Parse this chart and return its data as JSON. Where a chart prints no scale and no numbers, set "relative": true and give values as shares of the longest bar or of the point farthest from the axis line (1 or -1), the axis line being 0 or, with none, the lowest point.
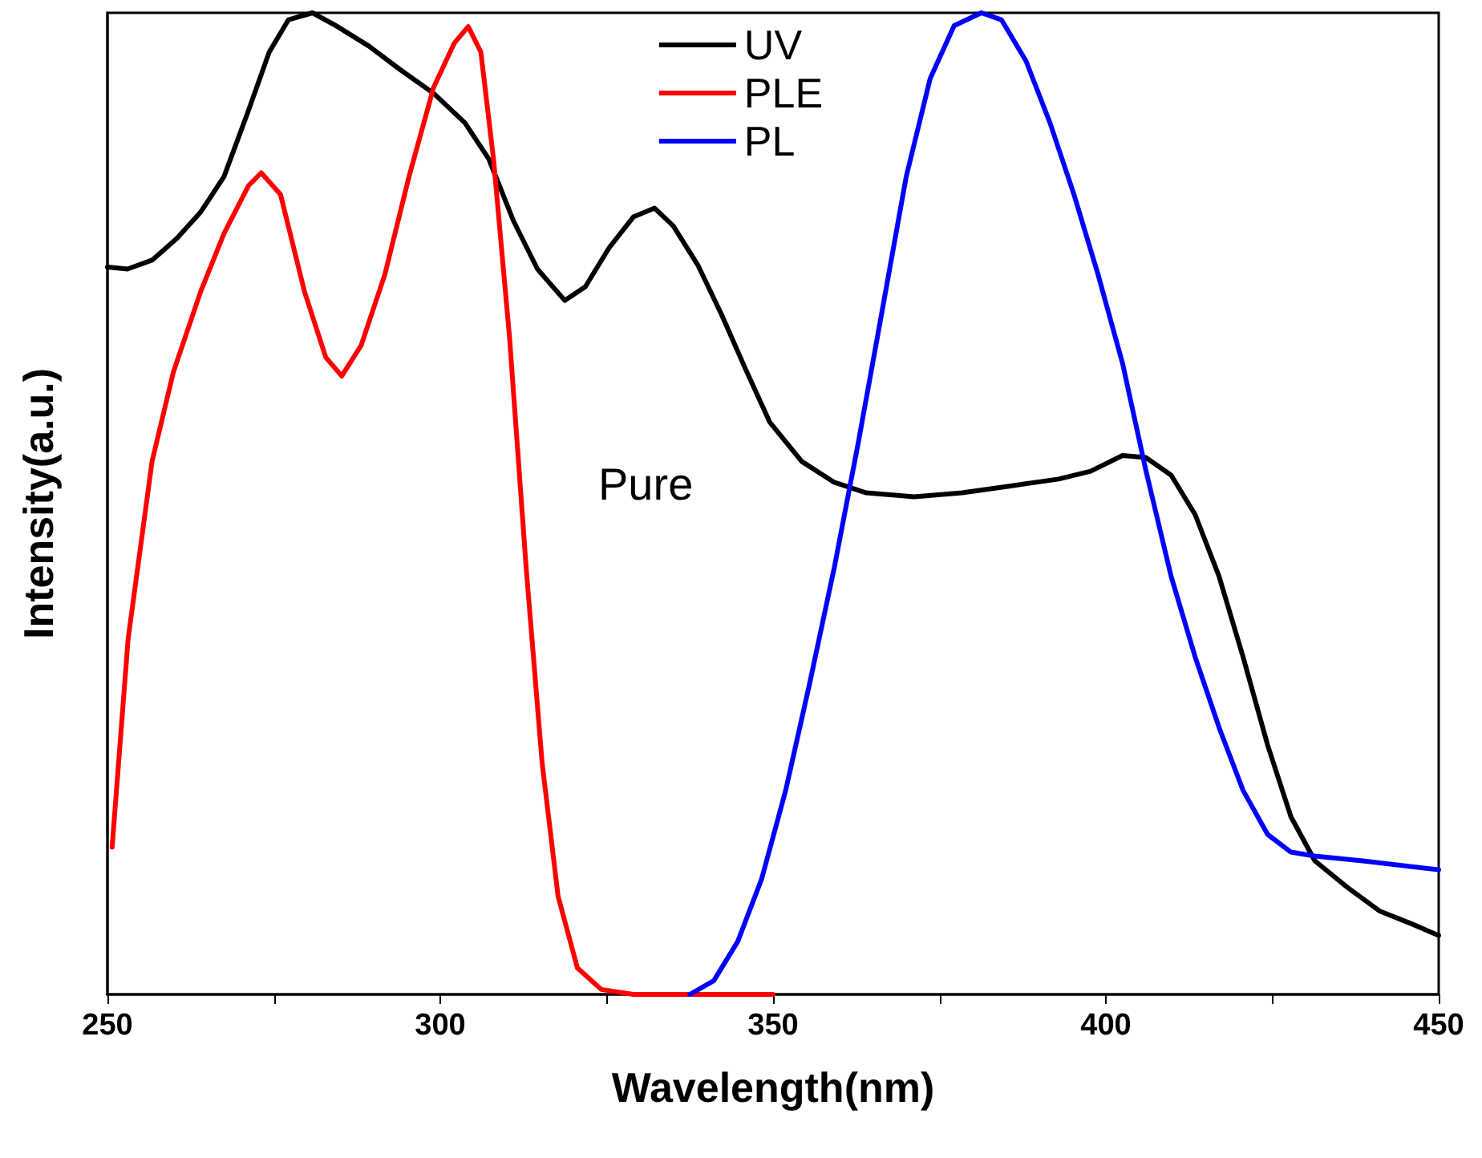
{
  "chart_data": {
    "type": "line",
    "relative": true,
    "xlabel": "Wavelength(nm)",
    "ylabel": "Intensity(a.u.)",
    "annotations": [
      "Pure"
    ],
    "xlim": [
      250,
      450
    ],
    "xticks": [
      250,
      {
        "value": 275,
        "label": null
      },
      300,
      {
        "value": 325,
        "label": null
      },
      350,
      {
        "value": 375,
        "label": null
      },
      400,
      {
        "value": 425,
        "label": null
      },
      450
    ],
    "legend": "top",
    "grid": false,
    "marker": "none",
    "line_style": "solid",
    "series": [
      {
        "name": "UV",
        "color": "#000000",
        "x": [
          250,
          253,
          256.7,
          260.4,
          264,
          267.5,
          271,
          274.3,
          277.2,
          280.8,
          284.3,
          289.3,
          294,
          299,
          303.7,
          307.3,
          311,
          314.6,
          318.7,
          321.8,
          325.4,
          329,
          332.2,
          335,
          338.7,
          342.3,
          345.8,
          349.5,
          354.3,
          359.1,
          364,
          371.2,
          378.4,
          385.7,
          392.9,
          397.7,
          402.5,
          406,
          409.8,
          413.4,
          417,
          420.6,
          424.3,
          427.8,
          431.4,
          436.3,
          441.1,
          445.9,
          450
        ],
        "values": [
          0.741,
          0.739,
          0.748,
          0.77,
          0.797,
          0.833,
          0.897,
          0.96,
          0.993,
          1.0,
          0.987,
          0.966,
          0.942,
          0.918,
          0.888,
          0.851,
          0.788,
          0.739,
          0.707,
          0.721,
          0.761,
          0.792,
          0.801,
          0.783,
          0.743,
          0.692,
          0.638,
          0.583,
          0.543,
          0.522,
          0.511,
          0.507,
          0.511,
          0.518,
          0.525,
          0.533,
          0.549,
          0.547,
          0.529,
          0.489,
          0.426,
          0.344,
          0.254,
          0.181,
          0.136,
          0.109,
          0.085,
          0.072,
          0.06
        ]
      },
      {
        "name": "PLE",
        "color": "#ff0000",
        "x": [
          250.7,
          253.1,
          256.7,
          259.9,
          264,
          267.5,
          271.2,
          273.1,
          276,
          279.6,
          282.8,
          285.2,
          288.1,
          291.7,
          295.3,
          299,
          302.1,
          304.2,
          306.1,
          308,
          310.4,
          312.9,
          315.3,
          317.7,
          320.6,
          324.2,
          329,
          339.9,
          350
        ],
        "values": [
          0.15,
          0.362,
          0.543,
          0.634,
          0.716,
          0.775,
          0.824,
          0.837,
          0.815,
          0.716,
          0.649,
          0.63,
          0.661,
          0.734,
          0.833,
          0.924,
          0.969,
          0.986,
          0.96,
          0.851,
          0.67,
          0.435,
          0.236,
          0.1,
          0.027,
          0.005,
          0,
          0,
          0
        ]
      },
      {
        "name": "PL",
        "color": "#0000ff",
        "x": [
          337.5,
          341.1,
          344.7,
          348.3,
          351.9,
          355.5,
          359.2,
          362.8,
          366.4,
          370,
          373.6,
          377.2,
          381.3,
          384.3,
          388,
          391.6,
          395.2,
          398.8,
          402.5,
          406,
          409.8,
          413.4,
          417,
          420.6,
          424.3,
          427.8,
          431.4,
          438.6,
          450
        ],
        "values": [
          0,
          0.014,
          0.054,
          0.118,
          0.208,
          0.317,
          0.435,
          0.562,
          0.697,
          0.833,
          0.933,
          0.987,
          1.0,
          0.993,
          0.951,
          0.888,
          0.815,
          0.734,
          0.643,
          0.534,
          0.426,
          0.344,
          0.272,
          0.208,
          0.163,
          0.145,
          0.141,
          0.136,
          0.127
        ]
      }
    ]
  }
}
